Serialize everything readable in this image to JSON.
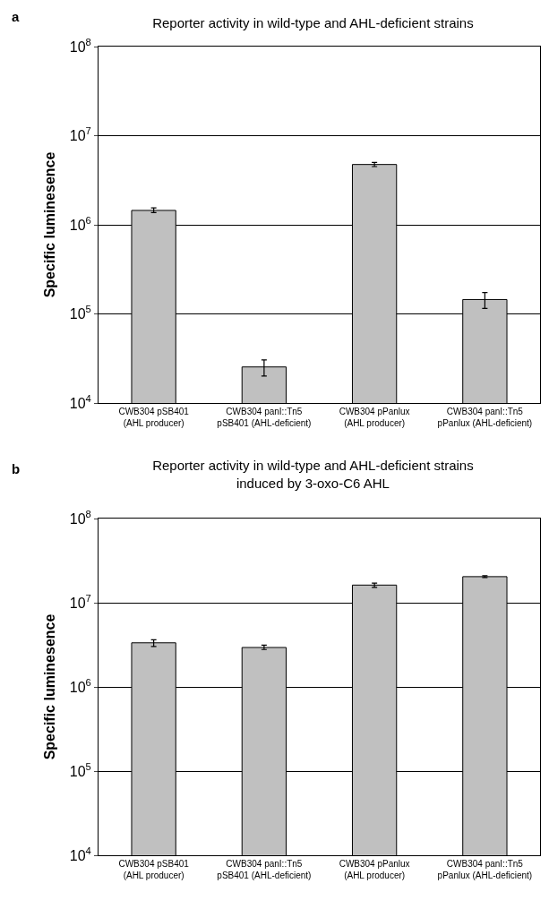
{
  "chart_data": [
    {
      "type": "bar",
      "title": "Reporter activity in wild-type and AHL-deficient strains",
      "ylabel": "Specific luminesence",
      "annotations": [
        "a"
      ],
      "categories": [
        "CWB304 pSB401\n(AHL producer)",
        "CWB304 panI::Tn5\npSB401 (AHL-deficient)",
        "CWB304 pPanlux\n(AHL producer)",
        "CWB304 panI::Tn5\npPanlux (AHL-deficient)"
      ],
      "values": [
        1450000,
        25400,
        4750000,
        145000
      ],
      "color": "#c0c0c0",
      "errors": [
        [
          1370000,
          1550000
        ],
        [
          20100,
          30500
        ],
        [
          4500000,
          5000000
        ],
        [
          115000,
          174000
        ]
      ],
      "log": true,
      "ylim": [
        10000,
        100000000
      ],
      "yticks": [
        {
          "value": 10000,
          "label": "10$^{4}$"
        },
        {
          "value": 100000,
          "label": "10$^{5}$"
        },
        {
          "value": 1000000,
          "label": "10$^{6}$"
        },
        {
          "value": 10000000,
          "label": "10$^{7}$"
        },
        {
          "value": 100000000,
          "label": "10$^{8}$"
        }
      ],
      "grid": "y",
      "legend": false
    },
    {
      "type": "bar",
      "title": "Reporter activity in wild-type and AHL-deficient strains\ninduced by 3-oxo-C6 AHL",
      "ylabel": "Specific luminesence",
      "annotations": [
        "b"
      ],
      "categories": [
        "CWB304 pSB401\n(AHL producer)",
        "CWB304 panI::Tn5\npSB401 (AHL-deficient)",
        "CWB304 pPanlux\n(AHL producer)",
        "CWB304 panI::Tn5\npPanlux (AHL-deficient)"
      ],
      "values": [
        3340000,
        2940000,
        16200000,
        20400000
      ],
      "color": "#c0c0c0",
      "errors": [
        [
          3020000,
          3630000
        ],
        [
          2780000,
          3130000
        ],
        [
          15200000,
          17100000
        ],
        [
          19900000,
          20900000
        ]
      ],
      "log": true,
      "ylim": [
        10000,
        100000000
      ],
      "yticks": [
        {
          "value": 10000,
          "label": "10$^{4}$"
        },
        {
          "value": 100000,
          "label": "10$^{5}$"
        },
        {
          "value": 1000000,
          "label": "10$^{6}$"
        },
        {
          "value": 10000000,
          "label": "10$^{7}$"
        },
        {
          "value": 100000000,
          "label": "10$^{8}$"
        }
      ],
      "grid": "y",
      "legend": false
    }
  ]
}
